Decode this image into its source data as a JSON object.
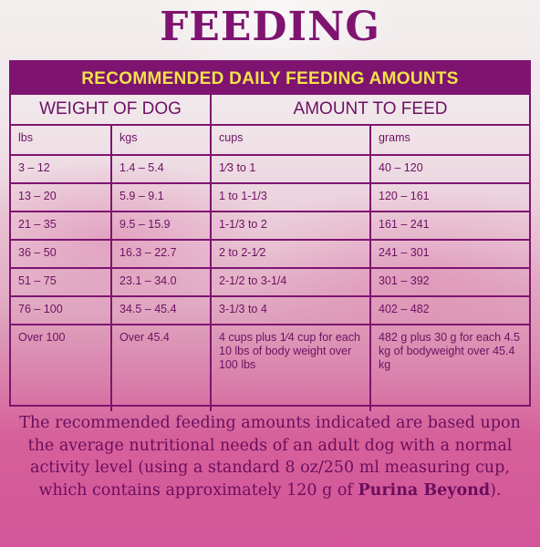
{
  "title": "FEEDING",
  "table": {
    "banner": "RECOMMENDED DAILY FEEDING AMOUNTS",
    "group_headers": [
      "WEIGHT OF DOG",
      "AMOUNT TO FEED"
    ],
    "unit_headers": [
      "lbs",
      "kgs",
      "cups",
      "grams"
    ],
    "rows": [
      [
        "3 – 12",
        "1.4 – 5.4",
        "1⁄3 to 1",
        "40 – 120"
      ],
      [
        "13 – 20",
        "5.9 – 9.1",
        "1 to 1-1/3",
        "120 – 161"
      ],
      [
        "21 – 35",
        "9.5 – 15.9",
        "1-1/3 to 2",
        "161 – 241"
      ],
      [
        "36 – 50",
        "16.3 – 22.7",
        "2 to 2-1⁄2",
        "241 – 301"
      ],
      [
        "51 – 75",
        "23.1 – 34.0",
        "2-1/2 to 3-1/4",
        "301 – 392"
      ],
      [
        "76 – 100",
        "34.5 – 45.4",
        "3-1/3 to 4",
        "402 – 482"
      ],
      [
        "Over 100",
        "Over 45.4",
        "4 cups plus 1⁄4 cup for each 10 lbs of body weight over 100 lbs",
        "482 g plus 30 g for each 4.5 kg of bodyweight over 45.4 kg"
      ]
    ]
  },
  "note": {
    "text": "The recommended feeding amounts indicated are based upon the average nutritional needs of an adult dog with a normal activity level (using a standard 8 oz/250 ml measuring cup, which contains approximately 120 g of ",
    "brand": "Purina Beyond",
    "end": ")."
  },
  "colors": {
    "primary": "#7e1470",
    "banner_text": "#f2e24a",
    "text": "#6d1163"
  }
}
